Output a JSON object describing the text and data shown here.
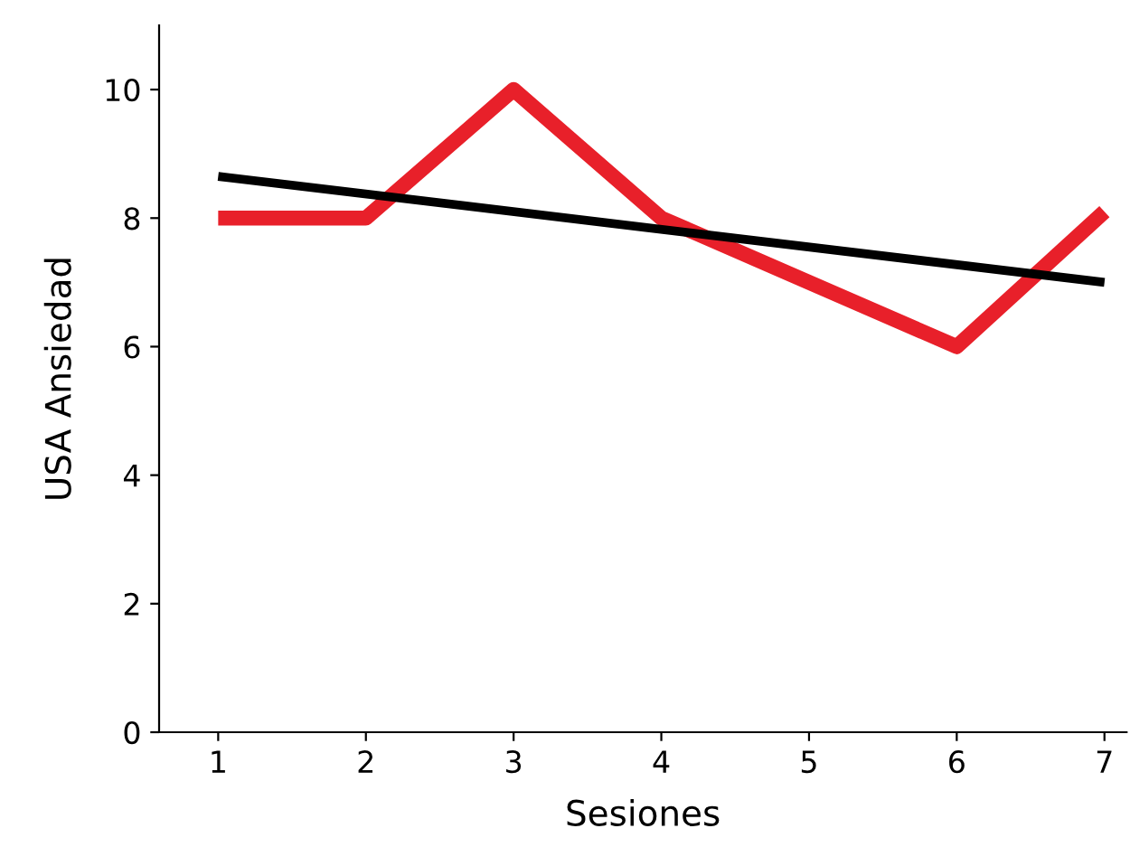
{
  "chart_data": {
    "type": "line",
    "xlabel": "Sesiones",
    "ylabel": "USA Ansiedad",
    "x": [
      1,
      2,
      3,
      4,
      5,
      6,
      7
    ],
    "series": [
      {
        "color": "#e8202a",
        "values": [
          8,
          8,
          10,
          8,
          7,
          6,
          8.1
        ]
      },
      {
        "type": "line",
        "color": "#000000",
        "x": [
          1,
          7
        ],
        "values": [
          8.65,
          7.0
        ]
      }
    ],
    "xlim": [
      0.6,
      7.15
    ],
    "ylim": [
      0,
      11
    ],
    "xticks": [
      1,
      2,
      3,
      4,
      5,
      6,
      7
    ],
    "yticks": [
      0,
      2,
      4,
      6,
      8,
      10
    ],
    "marker": "none",
    "line_style": "solid"
  }
}
